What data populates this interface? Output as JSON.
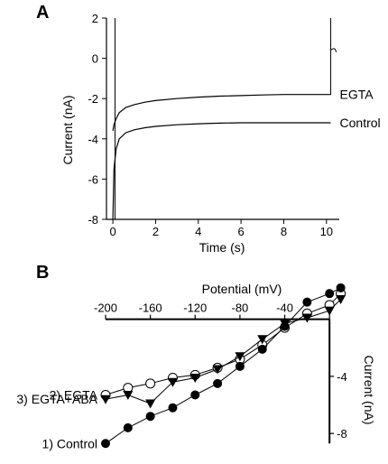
{
  "chart_data": [
    {
      "panel": "A",
      "type": "line",
      "xlabel": "Time (s)",
      "ylabel": "Current (nA)",
      "xlim": [
        -0.3,
        10.6
      ],
      "ylim": [
        -8,
        2
      ],
      "xticks": [
        "0",
        "2",
        "4",
        "6",
        "8",
        "10"
      ],
      "yticks": [
        "2",
        "0",
        "-2",
        "-4",
        "-6",
        "-8"
      ],
      "series": [
        {
          "name": "EGTA",
          "x": [
            0,
            0.05,
            0.15,
            0.3,
            0.6,
            1.0,
            1.5,
            2.0,
            3.0,
            4.0,
            5.0,
            6.0,
            7.0,
            8.0,
            9.0,
            10.0,
            10.2
          ],
          "y": [
            -3.6,
            -3.3,
            -3.0,
            -2.7,
            -2.45,
            -2.3,
            -2.18,
            -2.1,
            -2.0,
            -1.93,
            -1.88,
            -1.85,
            -1.82,
            -1.8,
            -1.8,
            -1.8,
            -1.8
          ]
        },
        {
          "name": "Control",
          "x": [
            0,
            0.05,
            0.15,
            0.3,
            0.6,
            1.0,
            1.5,
            2.0,
            3.0,
            4.0,
            5.0,
            6.0,
            7.0,
            8.0,
            9.0,
            10.0,
            10.2
          ],
          "y": [
            -8.0,
            -5.5,
            -4.5,
            -4.0,
            -3.7,
            -3.55,
            -3.45,
            -3.38,
            -3.3,
            -3.25,
            -3.22,
            -3.2,
            -3.2,
            -3.2,
            -3.2,
            -3.2,
            -3.2
          ]
        }
      ]
    },
    {
      "panel": "B",
      "type": "scatter",
      "xlabel": "Potential (mV)",
      "ylabel": "Current (nA)",
      "xlim": [
        -200,
        20
      ],
      "ylim": [
        -9,
        2
      ],
      "xticks": [
        "-200",
        "-160",
        "-120",
        "-80",
        "-40",
        "0"
      ],
      "yticks": [
        "-4",
        "-8"
      ],
      "series": [
        {
          "name": "1) Control",
          "marker": "filled-circle",
          "x": [
            -200,
            -180,
            -160,
            -140,
            -120,
            -100,
            -80,
            -60,
            -40,
            -20,
            0,
            10
          ],
          "y": [
            -8.7,
            -7.6,
            -6.8,
            -6.2,
            -5.3,
            -4.5,
            -3.3,
            -2.1,
            -0.5,
            1.2,
            1.8,
            2.2
          ]
        },
        {
          "name": "2) EGTA",
          "marker": "open-circle",
          "x": [
            -200,
            -180,
            -160,
            -140,
            -120,
            -100,
            -80,
            -60,
            -40,
            -20,
            0,
            10
          ],
          "y": [
            -5.3,
            -4.8,
            -4.5,
            -4.1,
            -3.9,
            -3.4,
            -2.8,
            -1.8,
            -0.6,
            0.4,
            1.0,
            1.8
          ]
        },
        {
          "name": "3) EGTA+ABA",
          "marker": "filled-triangle-down",
          "x": [
            -200,
            -180,
            -160,
            -140,
            -120,
            -100,
            -80,
            -60,
            -40,
            -20,
            0,
            10
          ],
          "y": [
            -5.6,
            -5.3,
            -5.9,
            -4.4,
            -4.1,
            -3.5,
            -2.6,
            -1.4,
            -0.3,
            0.1,
            0.6,
            1.4
          ]
        }
      ]
    }
  ]
}
